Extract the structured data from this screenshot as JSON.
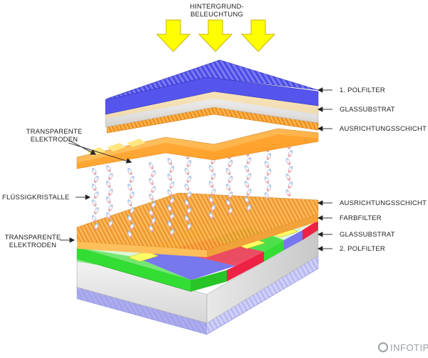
{
  "labels": {
    "backlight_line1": "HINTERGRUND-",
    "backlight_line2": "BELEUCHTUNG",
    "polfilter_1": "1. POLFILTER",
    "glassubstrat_top": "GLASSUBSTRAT",
    "ausrichtung_top": "AUSRICHTUNGSSCHICHT",
    "electrodes_top_line1": "TRANSPARENTE",
    "electrodes_top_line2": "ELEKTRODEN",
    "fluessigkristalle": "FLÜSSIGKRISTALLE",
    "ausrichtung_bottom": "AUSRICHTUNGSSCHICHT",
    "farbfilter": "FARBFILTER",
    "glassubstrat_bottom": "GLASSUBSTRAT",
    "electrodes_bottom_line1": "TRANSPARENTE",
    "electrodes_bottom_line2": "ELEKTRODEN",
    "polfilter_2": "2. POLFILTER"
  },
  "brand": {
    "name": "INFOTIP"
  },
  "colors": {
    "arrow_yellow": "#ffff00",
    "arrow_outline": "#c8b400",
    "polarizer_blue": "#5555ee",
    "electrode_orange": "#ffb340",
    "filter_red": "#ee2244",
    "filter_green": "#33dd33",
    "filter_blue": "#7777ee"
  }
}
